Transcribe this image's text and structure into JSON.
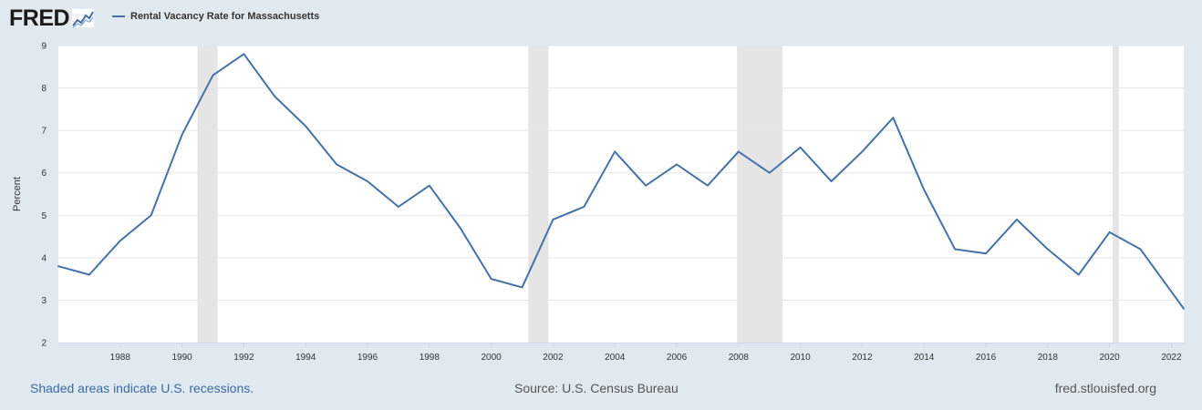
{
  "header": {
    "logo_text": "FRED",
    "logo_icon": "trend-graph-icon"
  },
  "footer": {
    "left": "Shaded areas indicate U.S. recessions.",
    "center": "Source: U.S. Census Bureau",
    "right": "fred.stlouisfed.org"
  },
  "chart_data": {
    "type": "line",
    "title": "",
    "xlabel": "",
    "ylabel": "Percent",
    "xlim": [
      1986,
      2022.4
    ],
    "ylim": [
      2,
      9
    ],
    "yticks": [
      2,
      3,
      4,
      5,
      6,
      7,
      8,
      9
    ],
    "xticks": [
      "1988",
      "1990",
      "1992",
      "1994",
      "1996",
      "1998",
      "2000",
      "2002",
      "2004",
      "2006",
      "2008",
      "2010",
      "2012",
      "2014",
      "2016",
      "2018",
      "2020",
      "2022"
    ],
    "grid": true,
    "legend": "top-left",
    "series": [
      {
        "name": "Rental Vacancy Rate for Massachusetts",
        "color": "#4572a7",
        "x": [
          1986,
          1987,
          1988,
          1989,
          1990,
          1991,
          1992,
          1993,
          1994,
          1995,
          1996,
          1997,
          1998,
          1999,
          2000,
          2001,
          2002,
          2003,
          2004,
          2005,
          2006,
          2007,
          2008,
          2009,
          2010,
          2011,
          2012,
          2013,
          2014,
          2015,
          2016,
          2017,
          2018,
          2019,
          2020,
          2021,
          2022.4
        ],
        "values": [
          3.8,
          3.6,
          4.4,
          5.0,
          6.9,
          8.3,
          8.8,
          7.8,
          7.1,
          6.2,
          5.8,
          5.2,
          5.7,
          4.7,
          3.5,
          3.3,
          4.9,
          5.2,
          6.5,
          5.7,
          6.2,
          5.7,
          6.5,
          6.0,
          6.6,
          5.8,
          6.5,
          7.3,
          5.6,
          4.2,
          4.1,
          4.9,
          4.2,
          3.6,
          4.6,
          4.2,
          2.8
        ]
      }
    ],
    "recessions": [
      [
        1990.5,
        1991.15
      ],
      [
        2001.2,
        2001.85
      ],
      [
        2007.95,
        2009.42
      ],
      [
        2020.1,
        2020.3
      ]
    ],
    "recession_color": "#e5e5e5"
  }
}
